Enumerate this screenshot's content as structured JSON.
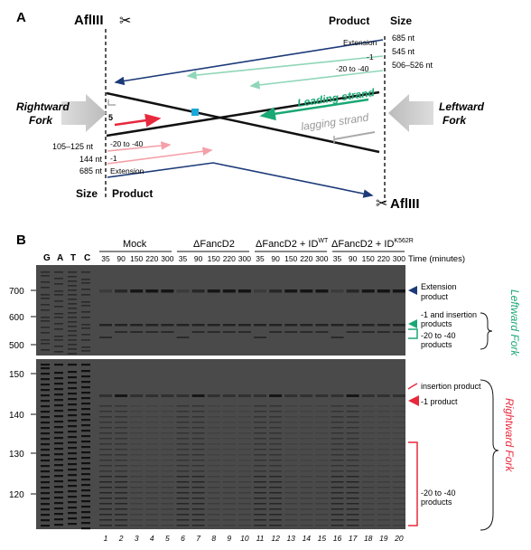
{
  "panel_a": {
    "label": "A",
    "enzyme_left": "AflIII",
    "enzyme_right": "AflIII",
    "header_product_top": "Product",
    "header_size_top": "Size",
    "header_size_bottom": "Size",
    "header_product_bottom": "Product",
    "rightward_fork": [
      "Rightward",
      "Fork"
    ],
    "leftward_fork": [
      "Leftward",
      "Fork"
    ],
    "leading_strand": "Leading strand",
    "lagging_strand": "lagging strand",
    "five_prime": "5",
    "top_products": [
      {
        "label": "Extension",
        "size": "685 nt"
      },
      {
        "label": "-1",
        "size": "545 nt"
      },
      {
        "label": "-20 to -40",
        "size": "506–526 nt"
      }
    ],
    "bottom_products": [
      {
        "label": "-20 to -40",
        "size": "105–125 nt"
      },
      {
        "label": "-1",
        "size": "144 nt"
      },
      {
        "label": "Extension",
        "size": "685 nt"
      }
    ],
    "colors": {
      "navy": "#1c3a78",
      "green": "#1aa874",
      "lightgreen": "#8fd6b8",
      "red": "#e8283c",
      "pink": "#f4a0a8",
      "grey": "#aaaaaa",
      "cyan": "#1aa8d8"
    }
  },
  "panel_b": {
    "label": "B",
    "sequence_lanes": [
      "G",
      "A",
      "T",
      "C"
    ],
    "groups": [
      {
        "label": "Mock"
      },
      {
        "label": "ΔFancD2"
      },
      {
        "label": "ΔFancD2 + ID",
        "sup": "WT"
      },
      {
        "label": "ΔFancD2 + ID",
        "sup": "K562R"
      }
    ],
    "time_points": [
      "35",
      "90",
      "150",
      "220",
      "300"
    ],
    "time_label": "Time (minutes)",
    "top_gel_ticks": [
      "700",
      "600",
      "500"
    ],
    "bottom_gel_ticks": [
      "150",
      "140",
      "130",
      "120"
    ],
    "lane_numbers": [
      "1",
      "2",
      "3",
      "4",
      "5",
      "6",
      "7",
      "8",
      "9",
      "10",
      "11",
      "12",
      "13",
      "14",
      "15",
      "16",
      "17",
      "18",
      "19",
      "20"
    ],
    "top_annotations": {
      "extension": [
        "Extension",
        "product"
      ],
      "minus1_insertion": [
        "-1 and insertion",
        "products"
      ],
      "minus20_40": [
        "-20 to -40",
        "products"
      ],
      "fork": "Leftward Fork"
    },
    "bottom_annotations": {
      "insertion": "insertion product",
      "minus1": "-1 product",
      "minus20_40": [
        "-20 to -40",
        "products"
      ],
      "fork": "Rightward Fork"
    }
  }
}
